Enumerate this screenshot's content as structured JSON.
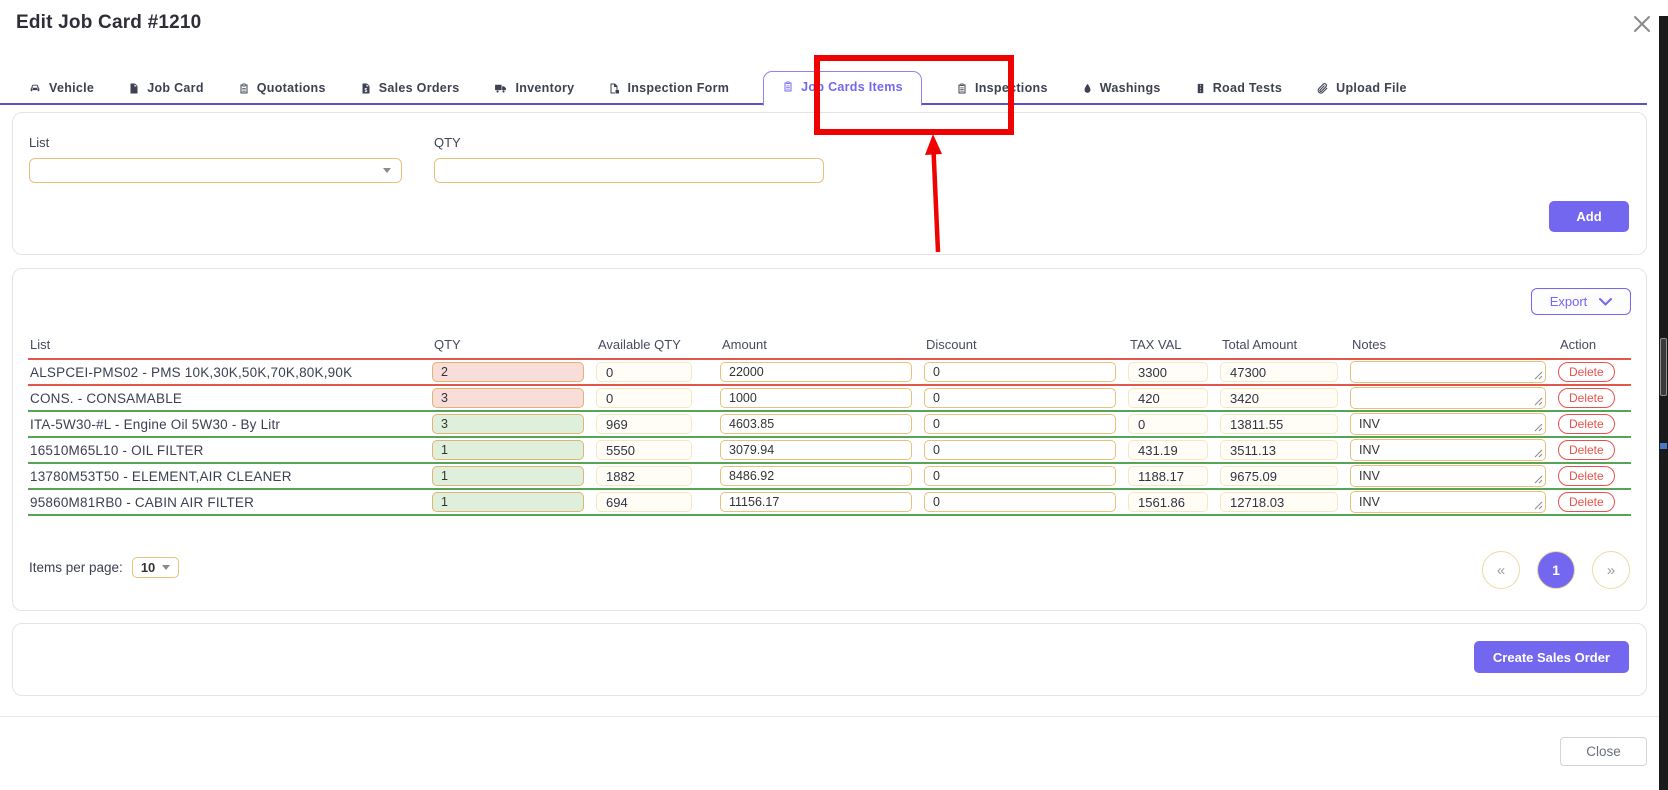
{
  "modal": {
    "title": "Edit Job Card #1210"
  },
  "tabs": [
    {
      "id": "vehicle",
      "label": "Vehicle",
      "icon": "car-icon",
      "active": false
    },
    {
      "id": "job-card",
      "label": "Job Card",
      "icon": "job-card-icon",
      "active": false
    },
    {
      "id": "quotations",
      "label": "Quotations",
      "icon": "quotations-icon",
      "active": false
    },
    {
      "id": "sales-orders",
      "label": "Sales Orders",
      "icon": "sales-orders-icon",
      "active": false
    },
    {
      "id": "inventory",
      "label": "Inventory",
      "icon": "inventory-icon",
      "active": false
    },
    {
      "id": "inspection-form",
      "label": "Inspection Form",
      "icon": "inspection-form-icon",
      "active": false
    },
    {
      "id": "job-cards-items",
      "label": "Job Cards Items",
      "icon": "job-cards-items-icon",
      "active": true
    },
    {
      "id": "inspections",
      "label": "Inspections",
      "icon": "inspections-icon",
      "active": false
    },
    {
      "id": "washings",
      "label": "Washings",
      "icon": "washings-icon",
      "active": false
    },
    {
      "id": "road-tests",
      "label": "Road Tests",
      "icon": "road-tests-icon",
      "active": false
    },
    {
      "id": "upload-file",
      "label": "Upload File",
      "icon": "upload-file-icon",
      "active": false
    }
  ],
  "form": {
    "list_label": "List",
    "list_value": "",
    "qty_label": "QTY",
    "qty_value": "",
    "add_label": "Add"
  },
  "table": {
    "export_label": "Export",
    "headers": [
      "List",
      "QTY",
      "Available QTY",
      "Amount",
      "Discount",
      "TAX VAL",
      "Total Amount",
      "Notes",
      "Action"
    ],
    "delete_label": "Delete",
    "rows": [
      {
        "list": "ALSPCEI-PMS02 - PMS 10K,30K,50K,70K,80K,90K",
        "qty": "2",
        "qty_status": "shortage",
        "available_qty": "0",
        "amount": "22000",
        "discount": "0",
        "tax_val": "3300",
        "total_amount": "47300",
        "notes": "",
        "separator": "red"
      },
      {
        "list": "CONS. - CONSAMABLE",
        "qty": "3",
        "qty_status": "shortage",
        "available_qty": "0",
        "amount": "1000",
        "discount": "0",
        "tax_val": "420",
        "total_amount": "3420",
        "notes": "",
        "separator": "red"
      },
      {
        "list": "ITA-5W30-#L - Engine Oil 5W30 - By Litr",
        "qty": "3",
        "qty_status": "ok",
        "available_qty": "969",
        "amount": "4603.85",
        "discount": "0",
        "tax_val": "0",
        "total_amount": "13811.55",
        "notes": "INV",
        "separator": "green"
      },
      {
        "list": "16510M65L10 - OIL FILTER",
        "qty": "1",
        "qty_status": "ok",
        "available_qty": "5550",
        "amount": "3079.94",
        "discount": "0",
        "tax_val": "431.19",
        "total_amount": "3511.13",
        "notes": "INV",
        "separator": "green"
      },
      {
        "list": "13780M53T50 - ELEMENT,AIR CLEANER",
        "qty": "1",
        "qty_status": "ok",
        "available_qty": "1882",
        "amount": "8486.92",
        "discount": "0",
        "tax_val": "1188.17",
        "total_amount": "9675.09",
        "notes": "INV",
        "separator": "green"
      },
      {
        "list": "95860M81RB0 - CABIN AIR FILTER",
        "qty": "1",
        "qty_status": "ok",
        "available_qty": "694",
        "amount": "11156.17",
        "discount": "0",
        "tax_val": "1561.86",
        "total_amount": "12718.03",
        "notes": "INV",
        "separator": "green"
      }
    ]
  },
  "pagination": {
    "items_per_page_label": "Items per page:",
    "items_per_page_value": "10",
    "prev_glyph": "«",
    "current_page": "1",
    "next_glyph": "»"
  },
  "footer": {
    "create_sales_order_label": "Create Sales Order",
    "close_label": "Close"
  },
  "colors": {
    "accent": "#7367f0",
    "tab_underline": "#5b51c9",
    "row_line_red": "#e2574c",
    "row_line_green": "#56a556",
    "qty_shortage_bg": "#f9ddd9",
    "qty_ok_bg": "#def0db",
    "input_border": "#e9c179",
    "delete_red": "#e8524d",
    "annotation_red": "#ee0202"
  }
}
